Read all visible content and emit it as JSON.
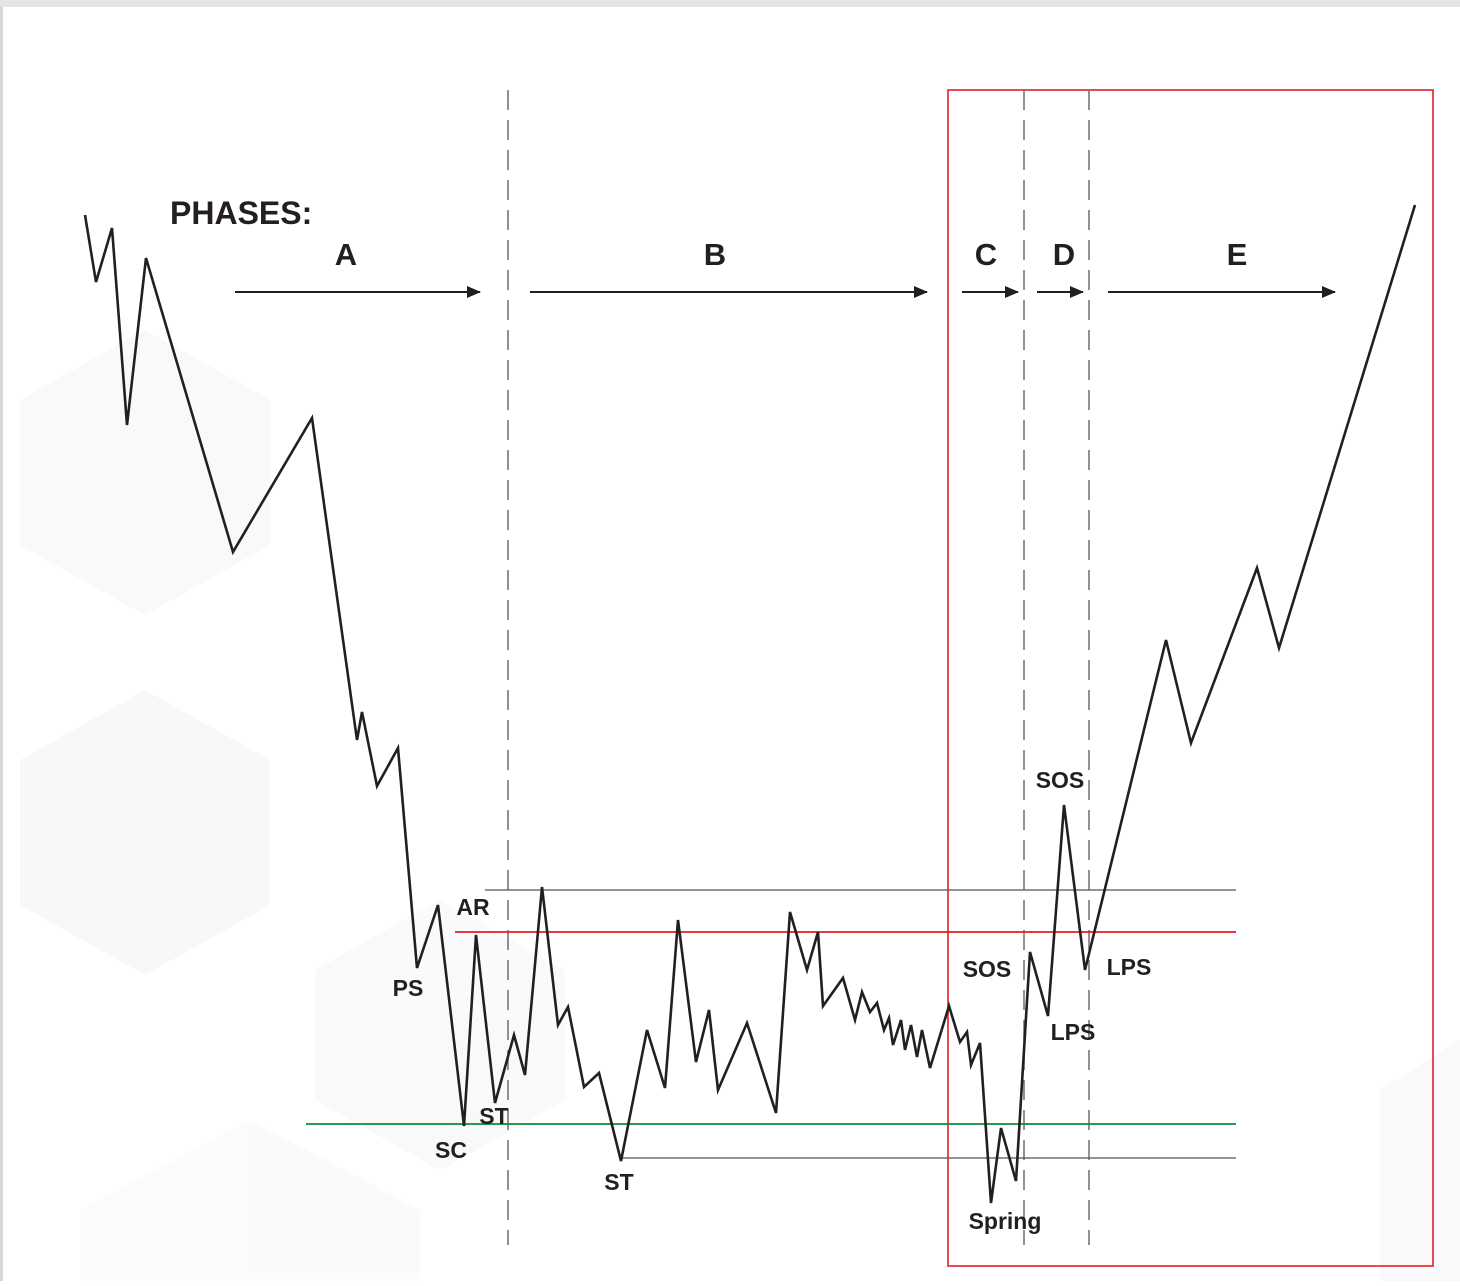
{
  "title": "PHASES:",
  "phases": [
    {
      "key": "a",
      "label": "A"
    },
    {
      "key": "b",
      "label": "B"
    },
    {
      "key": "c",
      "label": "C"
    },
    {
      "key": "d",
      "label": "D"
    },
    {
      "key": "e",
      "label": "E"
    }
  ],
  "events": [
    {
      "key": "ps",
      "label": "PS"
    },
    {
      "key": "ar",
      "label": "AR"
    },
    {
      "key": "sc",
      "label": "SC"
    },
    {
      "key": "st1",
      "label": "ST"
    },
    {
      "key": "st2",
      "label": "ST"
    },
    {
      "key": "sos1",
      "label": "SOS"
    },
    {
      "key": "sos2",
      "label": "SOS"
    },
    {
      "key": "lps1",
      "label": "LPS"
    },
    {
      "key": "lps2",
      "label": "LPS"
    },
    {
      "key": "spring",
      "label": "Spring"
    }
  ],
  "colors": {
    "price_line": "#231f20",
    "resistance_line": "#e31e24",
    "support_line": "#0a8a3a",
    "range_line": "#555555",
    "highlight_box": "#e31e24",
    "phase_divider": "#777777"
  }
}
